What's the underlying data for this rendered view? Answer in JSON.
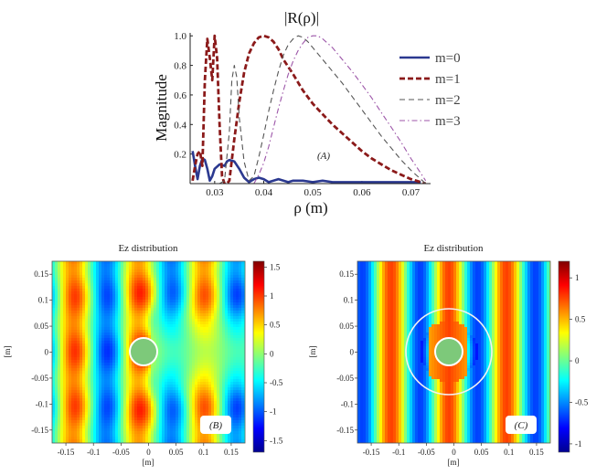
{
  "chart_data": [
    {
      "type": "line",
      "title": "|R(ρ)|",
      "xlabel": "ρ (m)",
      "ylabel": "Magnitude",
      "xlim": [
        0.025,
        0.074
      ],
      "ylim": [
        0,
        1.02
      ],
      "xticks": [
        "0.03",
        "0.04",
        "0.05",
        "0.06",
        "0.07"
      ],
      "yticks": [
        "0.2",
        "0.4",
        "0.6",
        "0.8",
        "1.0"
      ],
      "annotation": "(A)",
      "series": [
        {
          "name": "m=0",
          "color": "#2b3990",
          "style": "solid",
          "x": [
            0.0255,
            0.026,
            0.0265,
            0.027,
            0.0275,
            0.028,
            0.0285,
            0.029,
            0.0295,
            0.03,
            0.031,
            0.032,
            0.0325,
            0.033,
            0.034,
            0.035,
            0.036,
            0.037,
            0.038,
            0.039,
            0.04,
            0.041,
            0.042,
            0.043,
            0.044,
            0.045,
            0.046,
            0.048,
            0.05,
            0.052,
            0.054,
            0.056,
            0.058,
            0.06,
            0.062,
            0.064,
            0.066,
            0.068,
            0.07,
            0.072
          ],
          "y": [
            0.22,
            0.12,
            0.03,
            0.12,
            0.17,
            0.16,
            0.1,
            0.02,
            0.05,
            0.1,
            0.13,
            0.12,
            0.15,
            0.16,
            0.15,
            0.1,
            0.04,
            0.01,
            0.03,
            0.04,
            0.03,
            0.01,
            0.02,
            0.03,
            0.02,
            0.01,
            0.02,
            0.02,
            0.01,
            0.02,
            0.01,
            0.01,
            0.01,
            0.01,
            0.01,
            0.01,
            0.01,
            0.01,
            0.01,
            0.01
          ]
        },
        {
          "name": "m=1",
          "color": "#8b1a1a",
          "style": "dashed",
          "x": [
            0.0255,
            0.026,
            0.0265,
            0.027,
            0.0275,
            0.028,
            0.0285,
            0.029,
            0.0295,
            0.03,
            0.0305,
            0.031,
            0.0315,
            0.032,
            0.0325,
            0.033,
            0.034,
            0.035,
            0.036,
            0.037,
            0.038,
            0.039,
            0.04,
            0.041,
            0.042,
            0.043,
            0.044,
            0.046,
            0.048,
            0.05,
            0.052,
            0.054,
            0.056,
            0.058,
            0.06,
            0.062,
            0.064,
            0.066,
            0.068,
            0.07,
            0.072,
            0.073
          ],
          "y": [
            0.02,
            0.12,
            0.2,
            0.22,
            0.12,
            0.7,
            0.98,
            0.85,
            0.7,
            1.0,
            0.85,
            0.4,
            0.05,
            0.0,
            0.0,
            0.02,
            0.3,
            0.55,
            0.75,
            0.88,
            0.95,
            0.99,
            1.0,
            0.99,
            0.96,
            0.91,
            0.84,
            0.74,
            0.63,
            0.54,
            0.47,
            0.4,
            0.34,
            0.28,
            0.22,
            0.17,
            0.13,
            0.09,
            0.06,
            0.03,
            0.01,
            0.0
          ]
        },
        {
          "name": "m=2",
          "color": "#555555",
          "style": "dashed",
          "x": [
            0.031,
            0.032,
            0.033,
            0.0335,
            0.034,
            0.0345,
            0.035,
            0.036,
            0.037,
            0.038,
            0.039,
            0.04,
            0.041,
            0.042,
            0.043,
            0.044,
            0.045,
            0.046,
            0.047,
            0.048,
            0.049,
            0.05,
            0.052,
            0.054,
            0.056,
            0.058,
            0.06,
            0.062,
            0.064,
            0.066,
            0.068,
            0.07,
            0.072,
            0.073
          ],
          "y": [
            0.0,
            0.02,
            0.35,
            0.7,
            0.8,
            0.72,
            0.45,
            0.15,
            0.02,
            0.05,
            0.18,
            0.33,
            0.49,
            0.63,
            0.76,
            0.87,
            0.94,
            0.98,
            1.0,
            0.99,
            0.96,
            0.92,
            0.84,
            0.76,
            0.68,
            0.59,
            0.5,
            0.41,
            0.32,
            0.24,
            0.16,
            0.09,
            0.03,
            0.0
          ]
        },
        {
          "name": "m=3",
          "color": "#9c55a8",
          "style": "dashdot",
          "x": [
            0.038,
            0.039,
            0.04,
            0.041,
            0.042,
            0.043,
            0.044,
            0.045,
            0.046,
            0.047,
            0.048,
            0.049,
            0.05,
            0.051,
            0.052,
            0.053,
            0.054,
            0.056,
            0.058,
            0.06,
            0.062,
            0.064,
            0.066,
            0.068,
            0.07,
            0.072,
            0.073
          ],
          "y": [
            0.0,
            0.06,
            0.14,
            0.25,
            0.38,
            0.51,
            0.63,
            0.74,
            0.83,
            0.9,
            0.95,
            0.99,
            1.0,
            1.0,
            0.98,
            0.95,
            0.92,
            0.84,
            0.76,
            0.67,
            0.58,
            0.48,
            0.38,
            0.28,
            0.17,
            0.07,
            0.02
          ]
        }
      ]
    },
    {
      "type": "heatmap",
      "title": "Ez distribution",
      "xlabel": "[m]",
      "ylabel": "[m]",
      "xticks": [
        "-0.15",
        "-0.1",
        "-0.05",
        "0",
        "0.05",
        "0.1",
        "0.15"
      ],
      "yticks": [
        "0.15",
        "0.1",
        "0.05",
        "0",
        "-0.05",
        "-0.1",
        "-0.15"
      ],
      "colorbar_ticks": [
        "1.5",
        "1",
        "0.5",
        "0",
        "-0.5",
        "-1",
        "-1.5"
      ],
      "clim": [
        -1.7,
        1.6
      ],
      "annotation": "(B)",
      "description_rings": 1
    },
    {
      "type": "heatmap",
      "title": "Ez distribution",
      "xlabel": "[m]",
      "ylabel": "[m]",
      "xticks": [
        "-0.15",
        "-0.1",
        "-0.05",
        "0",
        "0.05",
        "0.1",
        "0.15"
      ],
      "yticks": [
        "0.15",
        "0.1",
        "0.05",
        "0",
        "-0.05",
        "-0.1",
        "-0.15"
      ],
      "colorbar_ticks": [
        "1",
        "0.5",
        "0",
        "-0.5",
        "-1"
      ],
      "clim": [
        -1.1,
        1.2
      ],
      "annotation": "(C)",
      "description_rings": 2
    }
  ]
}
